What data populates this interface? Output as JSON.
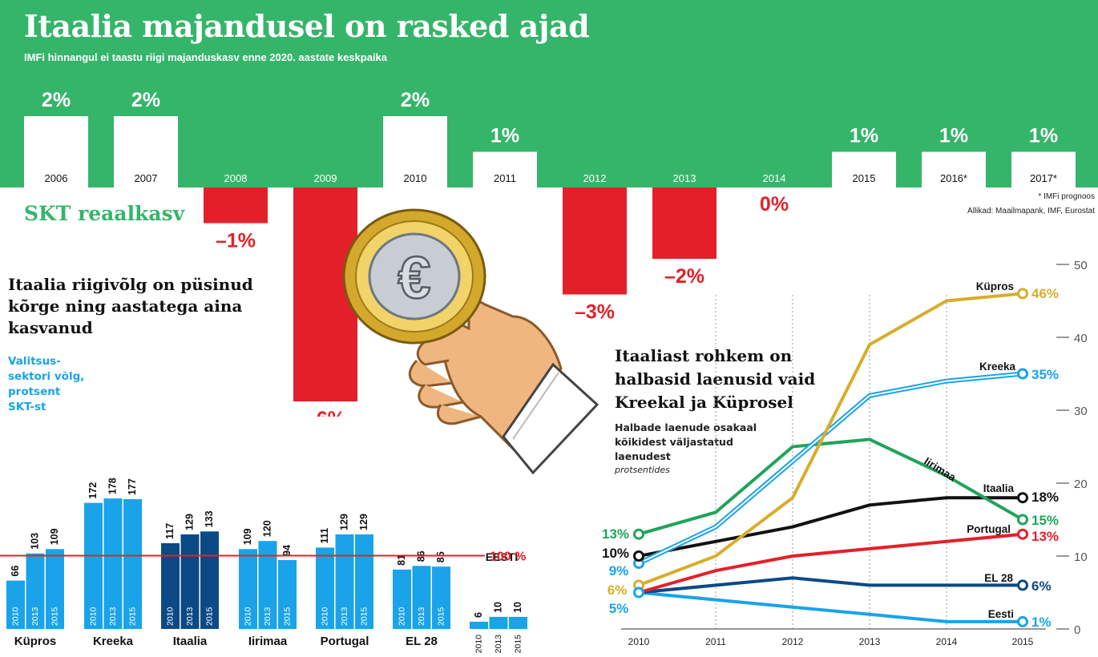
{
  "header": {
    "title": "Itaalia majandusel on rasked ajad",
    "subtitle": "IMFi hinnangul ei taastu riigi majanduskasv enne 2020. aastate keskpaika"
  },
  "colors": {
    "green": "#35b56a",
    "red": "#e3202a",
    "blue": "#1aa3e8",
    "navy": "#0b4a86",
    "gold": "#d8ad2c"
  },
  "illustration": {
    "icon": "hand-holding-euro-coin-icon"
  },
  "chart_data": [
    {
      "type": "bar",
      "label": "SKT reaalkasv",
      "categories": [
        "2006",
        "2007",
        "2008",
        "2009",
        "2010",
        "2011",
        "2012",
        "2013",
        "2014",
        "2015",
        "2016*",
        "2017*"
      ],
      "values": [
        2,
        2,
        -1,
        -6,
        2,
        1,
        -3,
        -2,
        0,
        1,
        1,
        1
      ],
      "value_labels": [
        "2%",
        "2%",
        "–1%",
        "–6%",
        "2%",
        "1%",
        "–3%",
        "–2%",
        "0%",
        "1%",
        "1%",
        "1%"
      ],
      "footnote": "* IMFi prognoos",
      "source": "Allikad: Maailmapank, IMF, Eurostat"
    },
    {
      "type": "bar",
      "title": "Itaalia riigivõlg on püsinud kõrge ning aastatega aina kasvanud",
      "side_label": "Valitsus-sektori võlg, protsent SKT-st",
      "groups": [
        "Küpros",
        "Kreeka",
        "Itaalia",
        "Iirimaa",
        "Portugal",
        "EL 28"
      ],
      "years": [
        "2010",
        "2013",
        "2015"
      ],
      "series": [
        {
          "group": "Küpros",
          "values": [
            66,
            103,
            109
          ]
        },
        {
          "group": "Kreeka",
          "values": [
            172,
            178,
            177
          ]
        },
        {
          "group": "Itaalia",
          "values": [
            117,
            129,
            133
          ]
        },
        {
          "group": "Iirimaa",
          "values": [
            109,
            120,
            94
          ]
        },
        {
          "group": "Portugal",
          "values": [
            111,
            129,
            129
          ]
        },
        {
          "group": "EL 28",
          "values": [
            81,
            86,
            85
          ]
        }
      ],
      "extra_group": {
        "name": "EESTI",
        "years": [
          "2010",
          "2013",
          "2015"
        ],
        "values": [
          6,
          10,
          10
        ]
      },
      "reference_line": {
        "value": 100,
        "label": "100 %"
      },
      "ylim": [
        0,
        185
      ]
    },
    {
      "type": "line",
      "title": "Itaaliast rohkem on halbasid laenusid vaid Kreekal ja Küprosel",
      "subtitle": "Halbade laenude osakaal kõikidest väljastatud laenudest",
      "unit": "protsentides",
      "x": [
        "2010",
        "2011",
        "2012",
        "2013",
        "2014",
        "2015"
      ],
      "ylim": [
        0,
        50
      ],
      "yticks": [
        0,
        10,
        20,
        30,
        40,
        50
      ],
      "series": [
        {
          "name": "Küpros",
          "values": [
            6,
            10,
            18,
            39,
            45,
            46
          ],
          "start_label": "6%",
          "end_label": "46%",
          "color": "#d8ad2c",
          "style": "solid"
        },
        {
          "name": "Kreeka",
          "values": [
            9,
            14,
            23,
            32,
            34,
            35
          ],
          "start_label": "9%",
          "end_label": "35%",
          "color": "#1aa3e8",
          "style": "double"
        },
        {
          "name": "Iirimaa",
          "values": [
            13,
            16,
            25,
            26,
            21,
            15
          ],
          "start_label": "13%",
          "end_label": "15%",
          "color": "#1fa45a",
          "style": "solid"
        },
        {
          "name": "Itaalia",
          "values": [
            10,
            12,
            14,
            17,
            18,
            18
          ],
          "start_label": "10%",
          "end_label": "18%",
          "color": "#111111",
          "style": "solid"
        },
        {
          "name": "Portugal",
          "values": [
            5,
            8,
            10,
            11,
            12,
            13
          ],
          "start_label": "",
          "end_label": "13%",
          "color": "#e3202a",
          "style": "solid"
        },
        {
          "name": "EL 28",
          "values": [
            5,
            6,
            7,
            6,
            6,
            6
          ],
          "start_label": "",
          "end_label": "6%",
          "color": "#0b4a86",
          "style": "solid"
        },
        {
          "name": "Eesti",
          "values": [
            5,
            4,
            3,
            2,
            1,
            1
          ],
          "start_label": "5%",
          "end_label": "1%",
          "color": "#1aa3e8",
          "style": "solid"
        }
      ]
    }
  ]
}
